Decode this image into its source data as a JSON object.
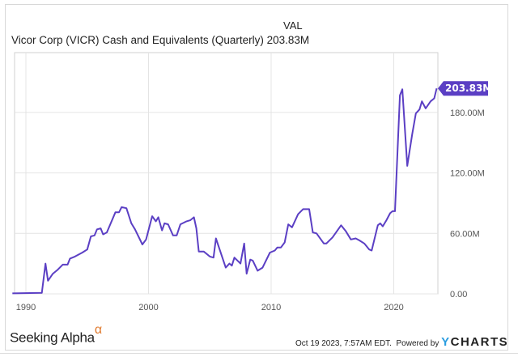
{
  "header": {
    "column_label": "VAL",
    "title": "Vicor Corp (VICR) Cash and Equivalents (Quarterly)",
    "current_value": "203.83M"
  },
  "footer": {
    "brand": "Seeking Alpha",
    "brand_mark": "α",
    "timestamp": "Oct 19 2023, 7:57AM EDT.",
    "powered_by": "Powered by",
    "ycharts_y": "Y",
    "ycharts_rest": "CHARTS"
  },
  "colors": {
    "line": "#5b3fc4",
    "grid": "#e4e4e4",
    "label_bg": "#5b3fc4"
  },
  "chart_data": {
    "type": "line",
    "title": "Vicor Corp (VICR) Cash and Equivalents (Quarterly)",
    "xlim": [
      1988.9,
      2023.6
    ],
    "ylim": [
      0,
      220
    ],
    "x_ticks": [
      1990,
      2000,
      2010,
      2020
    ],
    "x_tick_labels": [
      "1990",
      "2000",
      "2010",
      "2020"
    ],
    "y_ticks": [
      0,
      60,
      120,
      180
    ],
    "y_tick_labels": [
      "0.00",
      "60.00M",
      "120.00M",
      "180.00M"
    ],
    "y_axis_side": "right",
    "grid": true,
    "last_value_label": "203.83M",
    "series": [
      {
        "x": [
          1988.9,
          1991.3,
          1991.6,
          1991.8,
          1992.2,
          1992.6,
          1993.0,
          1993.4,
          1993.6,
          1994.0,
          1994.6,
          1995.0,
          1995.3,
          1995.6,
          1995.8,
          1996.1,
          1996.3,
          1996.6,
          1997.3,
          1997.6,
          1997.8,
          1998.2,
          1998.6,
          1998.9,
          1999.5,
          1999.8,
          2000.3,
          2000.6,
          2000.8,
          2001.1,
          2001.3,
          2001.6,
          2002.0,
          2002.3,
          2002.6,
          2003.1,
          2003.4,
          2003.7,
          2003.9,
          2004.1,
          2004.5,
          2005.0,
          2005.3,
          2005.5,
          2006.3,
          2006.6,
          2006.8,
          2007.0,
          2007.5,
          2007.8,
          2008.0,
          2008.3,
          2008.5,
          2008.9,
          2009.3,
          2009.9,
          2010.3,
          2010.5,
          2010.8,
          2011.1,
          2011.4,
          2011.7,
          2012.2,
          2012.6,
          2013.1,
          2013.4,
          2013.7,
          2014.3,
          2014.5,
          2015.0,
          2015.7,
          2016.1,
          2016.5,
          2016.9,
          2017.2,
          2017.6,
          2018.0,
          2018.2,
          2018.7,
          2018.9,
          2019.1,
          2019.4,
          2019.7,
          2019.9,
          2020.1,
          2020.5,
          2020.7,
          2021.1,
          2021.5,
          2021.8,
          2022.1,
          2022.3,
          2022.6,
          2023.0,
          2023.3,
          2023.5
        ],
        "y": [
          0.5,
          1,
          30,
          13,
          20,
          24,
          29,
          29,
          35,
          37,
          41,
          44,
          57,
          58,
          64,
          65,
          59,
          61,
          81,
          81,
          86,
          85,
          70,
          64,
          49,
          54,
          77,
          72,
          76,
          63,
          70,
          69,
          58,
          58,
          69,
          72,
          73,
          76,
          65,
          42,
          42,
          37,
          36,
          55,
          26,
          30,
          28,
          36,
          30,
          50,
          20,
          34,
          33,
          23,
          26,
          41,
          43,
          46,
          46,
          51,
          69,
          66,
          79,
          84,
          84,
          61,
          60,
          50,
          50,
          56,
          68,
          62,
          54,
          55,
          53,
          50,
          44,
          43,
          68,
          70,
          67,
          73,
          80,
          82,
          82,
          197,
          203,
          127,
          158,
          179,
          183,
          191,
          184,
          191,
          194,
          203.83
        ]
      }
    ]
  }
}
